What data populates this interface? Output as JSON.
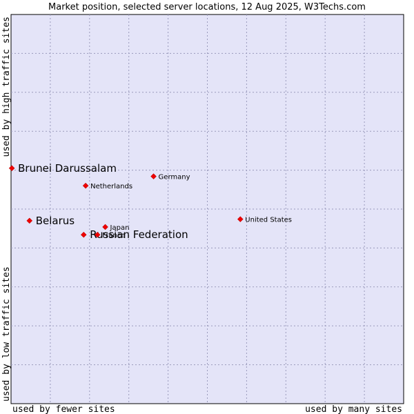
{
  "chart_data": {
    "type": "scatter",
    "title": "Market position, selected server locations, 12 Aug 2025, W3Techs.com",
    "xlabel_left": "used by fewer sites",
    "xlabel_right": "used by many sites",
    "ylabel_bottom": "used by low traffic sites",
    "ylabel_top": "used by high traffic sites",
    "grid": true,
    "xlim": [
      0,
      10
    ],
    "ylim": [
      0,
      10
    ],
    "colors": {
      "plot_bg": "#e4e4f8",
      "grid": "#9999bb",
      "marker": "#ee0000",
      "text": "#000000"
    },
    "points": [
      {
        "label": "Brunei Darussalam",
        "x": 0.02,
        "y": 6.05,
        "emphasis": true
      },
      {
        "label": "Belarus",
        "x": 0.47,
        "y": 4.7,
        "emphasis": true
      },
      {
        "label": "Russian Federation",
        "x": 1.85,
        "y": 4.34,
        "emphasis": true
      },
      {
        "label": "France",
        "x": 2.2,
        "y": 4.34,
        "emphasis": false
      },
      {
        "label": "Japan",
        "x": 2.4,
        "y": 4.54,
        "emphasis": false
      },
      {
        "label": "Netherlands",
        "x": 1.9,
        "y": 5.6,
        "emphasis": false
      },
      {
        "label": "Germany",
        "x": 3.63,
        "y": 5.84,
        "emphasis": false
      },
      {
        "label": "United States",
        "x": 5.84,
        "y": 4.74,
        "emphasis": false
      }
    ]
  }
}
